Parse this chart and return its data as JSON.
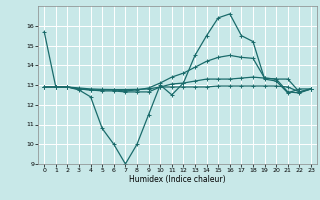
{
  "xlabel": "Humidex (Indice chaleur)",
  "background_color": "#c8e8e8",
  "grid_color": "#ffffff",
  "line_color": "#1a6b6b",
  "xlim": [
    -0.5,
    23.5
  ],
  "ylim": [
    9,
    17
  ],
  "yticks": [
    9,
    10,
    11,
    12,
    13,
    14,
    15,
    16
  ],
  "xticks": [
    0,
    1,
    2,
    3,
    4,
    5,
    6,
    7,
    8,
    9,
    10,
    11,
    12,
    13,
    14,
    15,
    16,
    17,
    18,
    19,
    20,
    21,
    22,
    23
  ],
  "lines": [
    {
      "x": [
        0,
        1,
        2,
        3,
        4,
        5,
        6,
        7,
        8,
        9,
        10,
        11,
        12,
        13,
        14,
        15,
        16,
        17,
        18,
        19,
        20,
        21,
        22,
        23
      ],
      "y": [
        15.7,
        12.9,
        12.9,
        12.75,
        12.4,
        10.8,
        10.0,
        9.0,
        10.0,
        11.5,
        13.0,
        12.5,
        13.1,
        14.5,
        15.5,
        16.4,
        16.6,
        15.5,
        15.2,
        13.3,
        13.2,
        12.6,
        12.8,
        12.8
      ]
    },
    {
      "x": [
        0,
        1,
        2,
        3,
        4,
        5,
        6,
        7,
        8,
        9,
        10,
        11,
        12,
        13,
        14,
        15,
        16,
        17,
        18,
        19,
        20,
        21,
        22,
        23
      ],
      "y": [
        12.9,
        12.9,
        12.9,
        12.8,
        12.75,
        12.7,
        12.7,
        12.65,
        12.65,
        12.65,
        12.9,
        13.05,
        13.1,
        13.2,
        13.3,
        13.3,
        13.3,
        13.35,
        13.4,
        13.35,
        13.3,
        13.3,
        12.65,
        12.8
      ]
    },
    {
      "x": [
        0,
        1,
        2,
        3,
        4,
        5,
        6,
        7,
        8,
        9,
        10,
        11,
        12,
        13,
        14,
        15,
        16,
        17,
        18,
        19,
        20,
        21,
        22,
        23
      ],
      "y": [
        12.9,
        12.9,
        12.9,
        12.8,
        12.75,
        12.75,
        12.75,
        12.7,
        12.75,
        12.85,
        13.1,
        13.4,
        13.6,
        13.9,
        14.2,
        14.4,
        14.5,
        14.4,
        14.35,
        13.35,
        13.3,
        12.65,
        12.6,
        12.8
      ]
    },
    {
      "x": [
        0,
        1,
        2,
        3,
        4,
        5,
        6,
        7,
        8,
        9,
        10,
        11,
        12,
        13,
        14,
        15,
        16,
        17,
        18,
        19,
        20,
        21,
        22,
        23
      ],
      "y": [
        12.9,
        12.9,
        12.9,
        12.85,
        12.8,
        12.78,
        12.77,
        12.77,
        12.78,
        12.8,
        12.9,
        12.9,
        12.9,
        12.9,
        12.9,
        12.95,
        12.95,
        12.95,
        12.95,
        12.95,
        12.95,
        12.9,
        12.65,
        12.8
      ]
    }
  ]
}
